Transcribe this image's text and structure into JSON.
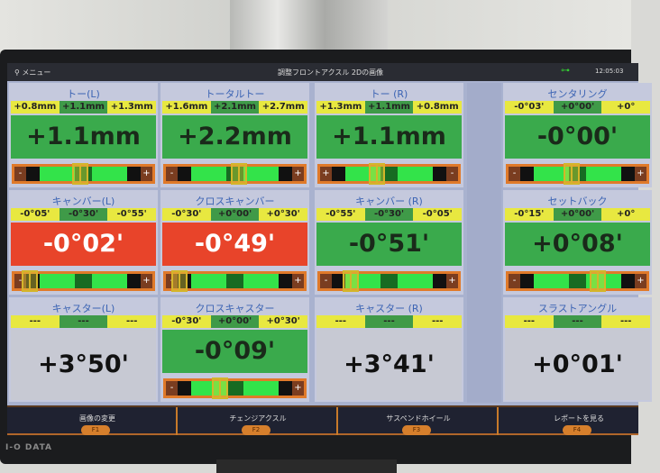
{
  "header": {
    "menu_label": "メニュー",
    "title": "調整フロントアクスル 2Dの画像",
    "time": "12:05:03"
  },
  "colors": {
    "in_range": "#3aaa4c",
    "out_of_range": "#e8442a",
    "tolerance": "#e8e840",
    "no_data": "#c7c9d3"
  },
  "panels": [
    {
      "title": "トー(L)",
      "range": [
        "+0.8mm",
        "+1.1mm",
        "+1.3mm"
      ],
      "value": "+1.1mm",
      "status": "green",
      "slider": {
        "left": "-",
        "right": "+",
        "marker": 0.48
      }
    },
    {
      "title": "トータルトー",
      "range": [
        "+1.6mm",
        "+2.1mm",
        "+2.7mm"
      ],
      "value": "+2.2mm",
      "status": "green",
      "slider": {
        "left": "-",
        "right": "+",
        "marker": 0.53
      }
    },
    {
      "title": "トー (R)",
      "range": [
        "+1.3mm",
        "+1.1mm",
        "+0.8mm"
      ],
      "value": "+1.1mm",
      "status": "green",
      "slider": {
        "left": "+",
        "right": "-",
        "marker": 0.41
      }
    },
    {
      "title": "センタリング",
      "range": [
        "-0°03'",
        "+0°00'",
        "+0°"
      ],
      "value": "-0°00'",
      "status": "green",
      "slider": {
        "left": "-",
        "right": "+",
        "marker": 0.46
      }
    },
    {
      "title": "キャンバー(L)",
      "range": [
        "-0°05'",
        "-0°30'",
        "-0°55'"
      ],
      "value": "-0°02'",
      "status": "red",
      "slider": {
        "left": "-",
        "right": "+",
        "marker": 0.11
      }
    },
    {
      "title": "クロスキャンバー",
      "range": [
        "-0°30'",
        "+0°00'",
        "+0°30'"
      ],
      "value": "-0°49'",
      "status": "red",
      "slider": {
        "left": "-",
        "right": "+",
        "marker": 0.1
      }
    },
    {
      "title": "キャンバー (R)",
      "range": [
        "-0°55'",
        "-0°30'",
        "-0°05'"
      ],
      "value": "-0°51'",
      "status": "green",
      "slider": {
        "left": "-",
        "right": "+",
        "marker": 0.22
      }
    },
    {
      "title": "セットバック",
      "range": [
        "-0°15'",
        "+0°00'",
        "+0°"
      ],
      "value": "+0°08'",
      "status": "green",
      "slider": {
        "left": "-",
        "right": "+",
        "marker": 0.65
      }
    },
    {
      "title": "キャスター(L)",
      "range": [
        "---",
        "---",
        "---"
      ],
      "value": "+3°50'",
      "status": "gray"
    },
    {
      "title": "クロスキャスター",
      "range": [
        "-0°30'",
        "+0°00'",
        "+0°30'"
      ],
      "value": "-0°09'",
      "status": "green",
      "slider": {
        "left": "-",
        "right": "+",
        "marker": 0.39
      }
    },
    {
      "title": "キャスター (R)",
      "range": [
        "---",
        "---",
        "---"
      ],
      "value": "+3°41'",
      "status": "gray"
    },
    {
      "title": "スラストアングル",
      "range": [
        "---",
        "---",
        "---"
      ],
      "value": "+0°01'",
      "status": "gray"
    }
  ],
  "footer": [
    {
      "label": "画像の変更",
      "key": "F1"
    },
    {
      "label": "チェンジアクスル",
      "key": "F2"
    },
    {
      "label": "サスペンドホイール",
      "key": "F3"
    },
    {
      "label": "レポートを見る",
      "key": "F4"
    }
  ],
  "monitor_brand": "I-O DATA"
}
